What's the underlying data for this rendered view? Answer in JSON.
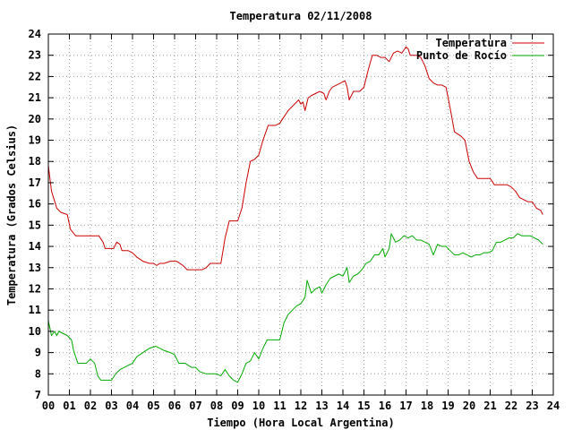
{
  "chart_data": {
    "type": "line",
    "title": "Temperatura 02/11/2008",
    "xlabel": "Tiempo (Hora Local Argentina)",
    "ylabel": "Temperatura (Grados Celsius)",
    "xlim": [
      0,
      24
    ],
    "ylim": [
      7,
      24
    ],
    "xticks": [
      "00",
      "01",
      "02",
      "03",
      "04",
      "05",
      "06",
      "07",
      "08",
      "09",
      "10",
      "11",
      "12",
      "13",
      "14",
      "15",
      "16",
      "17",
      "18",
      "19",
      "20",
      "21",
      "22",
      "23",
      "24"
    ],
    "yticks": [
      "7",
      "8",
      "9",
      "10",
      "11",
      "12",
      "13",
      "14",
      "15",
      "16",
      "17",
      "18",
      "19",
      "20",
      "21",
      "22",
      "23",
      "24"
    ],
    "grid": true,
    "legend_position": "top-right",
    "series": [
      {
        "name": "Temperatura",
        "color": "#cc0000",
        "points": [
          [
            0.0,
            17.8
          ],
          [
            0.15,
            16.6
          ],
          [
            0.4,
            15.8
          ],
          [
            0.6,
            15.6
          ],
          [
            0.9,
            15.5
          ],
          [
            1.05,
            14.8
          ],
          [
            1.3,
            14.5
          ],
          [
            1.6,
            14.5
          ],
          [
            2.0,
            14.5
          ],
          [
            2.4,
            14.5
          ],
          [
            2.6,
            14.2
          ],
          [
            2.7,
            13.9
          ],
          [
            3.0,
            13.9
          ],
          [
            3.1,
            13.9
          ],
          [
            3.25,
            14.2
          ],
          [
            3.4,
            14.1
          ],
          [
            3.5,
            13.8
          ],
          [
            3.8,
            13.8
          ],
          [
            4.0,
            13.7
          ],
          [
            4.2,
            13.5
          ],
          [
            4.5,
            13.3
          ],
          [
            4.8,
            13.2
          ],
          [
            5.0,
            13.2
          ],
          [
            5.15,
            13.1
          ],
          [
            5.3,
            13.2
          ],
          [
            5.5,
            13.2
          ],
          [
            5.8,
            13.3
          ],
          [
            6.1,
            13.3
          ],
          [
            6.4,
            13.1
          ],
          [
            6.6,
            12.9
          ],
          [
            7.0,
            12.9
          ],
          [
            7.3,
            12.9
          ],
          [
            7.5,
            13.0
          ],
          [
            7.7,
            13.2
          ],
          [
            8.0,
            13.2
          ],
          [
            8.2,
            13.2
          ],
          [
            8.4,
            14.4
          ],
          [
            8.6,
            15.2
          ],
          [
            9.0,
            15.2
          ],
          [
            9.2,
            15.8
          ],
          [
            9.4,
            17.0
          ],
          [
            9.6,
            18.0
          ],
          [
            9.8,
            18.1
          ],
          [
            10.0,
            18.3
          ],
          [
            10.2,
            19.0
          ],
          [
            10.45,
            19.7
          ],
          [
            10.8,
            19.7
          ],
          [
            11.0,
            19.8
          ],
          [
            11.2,
            20.1
          ],
          [
            11.4,
            20.4
          ],
          [
            11.7,
            20.7
          ],
          [
            11.9,
            20.9
          ],
          [
            12.0,
            20.7
          ],
          [
            12.1,
            20.8
          ],
          [
            12.2,
            20.4
          ],
          [
            12.35,
            21.0
          ],
          [
            12.5,
            21.1
          ],
          [
            12.7,
            21.2
          ],
          [
            12.9,
            21.3
          ],
          [
            13.1,
            21.2
          ],
          [
            13.2,
            20.9
          ],
          [
            13.35,
            21.3
          ],
          [
            13.5,
            21.5
          ],
          [
            13.7,
            21.6
          ],
          [
            13.9,
            21.7
          ],
          [
            14.1,
            21.8
          ],
          [
            14.2,
            21.5
          ],
          [
            14.3,
            20.9
          ],
          [
            14.5,
            21.3
          ],
          [
            14.8,
            21.3
          ],
          [
            15.0,
            21.5
          ],
          [
            15.2,
            22.3
          ],
          [
            15.4,
            23.0
          ],
          [
            15.6,
            23.0
          ],
          [
            15.8,
            22.9
          ],
          [
            16.0,
            22.9
          ],
          [
            16.2,
            22.7
          ],
          [
            16.4,
            23.1
          ],
          [
            16.6,
            23.2
          ],
          [
            16.8,
            23.1
          ],
          [
            17.0,
            23.4
          ],
          [
            17.1,
            23.3
          ],
          [
            17.2,
            23.0
          ],
          [
            17.5,
            23.0
          ],
          [
            17.7,
            22.9
          ],
          [
            17.9,
            22.5
          ],
          [
            18.1,
            21.9
          ],
          [
            18.3,
            21.7
          ],
          [
            18.5,
            21.6
          ],
          [
            18.7,
            21.6
          ],
          [
            18.9,
            21.5
          ],
          [
            19.1,
            20.5
          ],
          [
            19.3,
            19.4
          ],
          [
            19.6,
            19.2
          ],
          [
            19.8,
            19.0
          ],
          [
            20.0,
            18.0
          ],
          [
            20.2,
            17.5
          ],
          [
            20.4,
            17.2
          ],
          [
            20.8,
            17.2
          ],
          [
            21.0,
            17.2
          ],
          [
            21.2,
            16.9
          ],
          [
            21.5,
            16.9
          ],
          [
            21.8,
            16.9
          ],
          [
            22.0,
            16.8
          ],
          [
            22.2,
            16.6
          ],
          [
            22.4,
            16.3
          ],
          [
            22.6,
            16.2
          ],
          [
            22.8,
            16.1
          ],
          [
            23.0,
            16.1
          ],
          [
            23.2,
            15.8
          ],
          [
            23.4,
            15.7
          ],
          [
            23.5,
            15.5
          ]
        ]
      },
      {
        "name": "Punto de Rocío",
        "color": "#00aa00",
        "points": [
          [
            0.0,
            10.5
          ],
          [
            0.15,
            9.8
          ],
          [
            0.3,
            10.0
          ],
          [
            0.4,
            9.8
          ],
          [
            0.5,
            10.0
          ],
          [
            0.7,
            9.9
          ],
          [
            0.9,
            9.8
          ],
          [
            1.1,
            9.6
          ],
          [
            1.2,
            9.1
          ],
          [
            1.4,
            8.5
          ],
          [
            1.6,
            8.5
          ],
          [
            1.8,
            8.5
          ],
          [
            2.0,
            8.7
          ],
          [
            2.2,
            8.5
          ],
          [
            2.35,
            7.9
          ],
          [
            2.5,
            7.7
          ],
          [
            2.8,
            7.7
          ],
          [
            3.0,
            7.7
          ],
          [
            3.2,
            8.0
          ],
          [
            3.4,
            8.2
          ],
          [
            3.6,
            8.3
          ],
          [
            3.8,
            8.4
          ],
          [
            4.0,
            8.5
          ],
          [
            4.2,
            8.8
          ],
          [
            4.5,
            9.0
          ],
          [
            4.8,
            9.2
          ],
          [
            5.1,
            9.3
          ],
          [
            5.3,
            9.2
          ],
          [
            5.5,
            9.1
          ],
          [
            5.8,
            9.0
          ],
          [
            6.0,
            8.9
          ],
          [
            6.2,
            8.5
          ],
          [
            6.5,
            8.5
          ],
          [
            6.8,
            8.3
          ],
          [
            7.0,
            8.3
          ],
          [
            7.2,
            8.1
          ],
          [
            7.5,
            8.0
          ],
          [
            7.8,
            8.0
          ],
          [
            8.0,
            8.0
          ],
          [
            8.2,
            7.9
          ],
          [
            8.4,
            8.2
          ],
          [
            8.6,
            7.9
          ],
          [
            8.8,
            7.7
          ],
          [
            9.0,
            7.6
          ],
          [
            9.2,
            8.0
          ],
          [
            9.4,
            8.5
          ],
          [
            9.6,
            8.6
          ],
          [
            9.8,
            9.0
          ],
          [
            10.0,
            8.7
          ],
          [
            10.2,
            9.2
          ],
          [
            10.4,
            9.6
          ],
          [
            10.6,
            9.6
          ],
          [
            10.8,
            9.6
          ],
          [
            11.0,
            9.6
          ],
          [
            11.2,
            10.4
          ],
          [
            11.4,
            10.8
          ],
          [
            11.6,
            11.0
          ],
          [
            11.8,
            11.2
          ],
          [
            12.0,
            11.3
          ],
          [
            12.2,
            11.6
          ],
          [
            12.3,
            12.4
          ],
          [
            12.5,
            11.8
          ],
          [
            12.7,
            12.0
          ],
          [
            12.9,
            12.1
          ],
          [
            13.0,
            11.8
          ],
          [
            13.2,
            12.2
          ],
          [
            13.4,
            12.5
          ],
          [
            13.6,
            12.6
          ],
          [
            13.8,
            12.7
          ],
          [
            14.0,
            12.6
          ],
          [
            14.2,
            13.0
          ],
          [
            14.3,
            12.3
          ],
          [
            14.5,
            12.6
          ],
          [
            14.7,
            12.7
          ],
          [
            14.9,
            12.9
          ],
          [
            15.1,
            13.2
          ],
          [
            15.3,
            13.3
          ],
          [
            15.5,
            13.6
          ],
          [
            15.7,
            13.6
          ],
          [
            15.9,
            13.9
          ],
          [
            16.0,
            13.5
          ],
          [
            16.2,
            13.9
          ],
          [
            16.3,
            14.6
          ],
          [
            16.5,
            14.2
          ],
          [
            16.7,
            14.3
          ],
          [
            16.9,
            14.5
          ],
          [
            17.1,
            14.4
          ],
          [
            17.3,
            14.5
          ],
          [
            17.5,
            14.3
          ],
          [
            17.7,
            14.3
          ],
          [
            17.9,
            14.2
          ],
          [
            18.1,
            14.1
          ],
          [
            18.3,
            13.6
          ],
          [
            18.5,
            14.1
          ],
          [
            18.7,
            14.0
          ],
          [
            18.9,
            14.0
          ],
          [
            19.1,
            13.8
          ],
          [
            19.3,
            13.6
          ],
          [
            19.5,
            13.6
          ],
          [
            19.7,
            13.7
          ],
          [
            19.9,
            13.6
          ],
          [
            20.1,
            13.5
          ],
          [
            20.3,
            13.6
          ],
          [
            20.5,
            13.6
          ],
          [
            20.7,
            13.7
          ],
          [
            20.9,
            13.7
          ],
          [
            21.1,
            13.8
          ],
          [
            21.3,
            14.2
          ],
          [
            21.5,
            14.2
          ],
          [
            21.7,
            14.3
          ],
          [
            21.9,
            14.4
          ],
          [
            22.1,
            14.4
          ],
          [
            22.3,
            14.6
          ],
          [
            22.5,
            14.5
          ],
          [
            22.7,
            14.5
          ],
          [
            22.9,
            14.5
          ],
          [
            23.1,
            14.4
          ],
          [
            23.3,
            14.3
          ],
          [
            23.5,
            14.1
          ]
        ]
      }
    ]
  }
}
